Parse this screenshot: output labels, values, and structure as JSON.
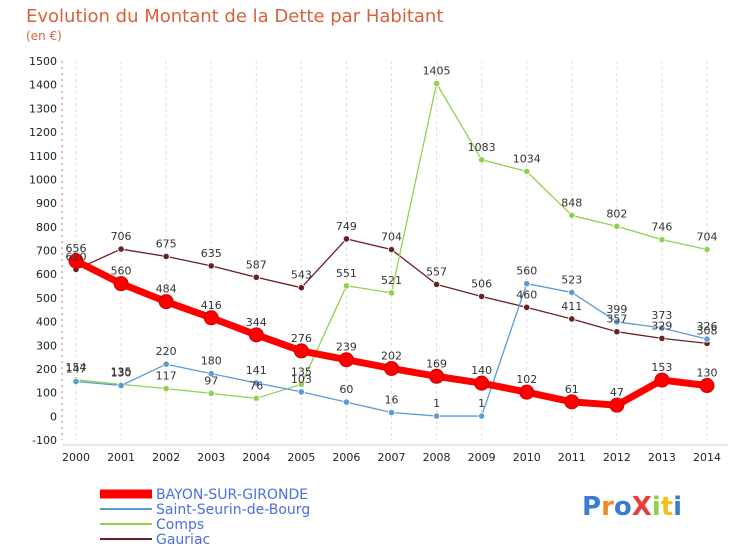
{
  "chart_data": {
    "type": "line",
    "title": "Evolution du Montant de la Dette par Habitant",
    "subtitle": "(en €)",
    "xlabel": "",
    "ylabel": "",
    "x": [
      "2000",
      "2001",
      "2002",
      "2003",
      "2004",
      "2005",
      "2006",
      "2007",
      "2008",
      "2009",
      "2010",
      "2011",
      "2012",
      "2013",
      "2014"
    ],
    "ylim": [
      -100,
      1500
    ],
    "yticks": [
      -100,
      0,
      100,
      200,
      300,
      400,
      500,
      600,
      700,
      800,
      900,
      1000,
      1100,
      1200,
      1300,
      1400,
      1500
    ],
    "grid": "vertical dashed",
    "legend_position": "bottom-left",
    "series": [
      {
        "name": "BAYON-SUR-GIRONDE",
        "color": "#ff0000",
        "values": [
          656,
          560,
          484,
          416,
          344,
          276,
          239,
          202,
          169,
          140,
          102,
          61,
          47,
          153,
          130
        ]
      },
      {
        "name": "Saint-Seurin-de-Bourg",
        "color": "#5b9bd5",
        "values": [
          147,
          130,
          220,
          180,
          141,
          103,
          60,
          16,
          1,
          1,
          560,
          523,
          399,
          373,
          326
        ]
      },
      {
        "name": "Comps",
        "color": "#8fd14f",
        "values": [
          154,
          135,
          117,
          97,
          76,
          135,
          551,
          521,
          1405,
          1083,
          1034,
          848,
          802,
          746,
          704
        ]
      },
      {
        "name": "Gauriac",
        "color": "#6b1f22",
        "values": [
          620,
          706,
          675,
          635,
          587,
          543,
          749,
          704,
          557,
          506,
          460,
          411,
          357,
          329,
          308
        ]
      }
    ]
  },
  "logo": {
    "text": "ProXiti"
  }
}
